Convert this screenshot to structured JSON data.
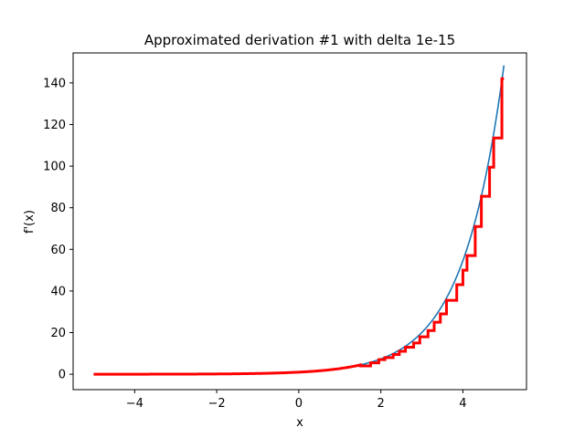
{
  "chart_data": {
    "type": "line",
    "title": "Approximated derivation #1 with delta 1e-15",
    "xlabel": "x",
    "ylabel": "f'(x)",
    "xlim": [
      -5.5,
      5.55
    ],
    "ylim": [
      -7.4,
      154.4
    ],
    "xticks": [
      -4,
      -2,
      0,
      2,
      4
    ],
    "xtick_labels": [
      "−4",
      "−2",
      "0",
      "2",
      "4"
    ],
    "yticks": [
      0,
      20,
      40,
      60,
      80,
      100,
      120,
      140
    ],
    "ytick_labels": [
      "0",
      "20",
      "40",
      "60",
      "80",
      "100",
      "120",
      "140"
    ],
    "grid": false,
    "series": [
      {
        "color": "#1f77b4",
        "function": "exp",
        "x_range": [
          -5,
          5
        ]
      },
      {
        "color": "#ff0000",
        "style": "step",
        "x_range": [
          -5,
          5
        ],
        "steps": [
          {
            "x": 1.5,
            "y": 4.0
          },
          {
            "x": 1.75,
            "y": 5.5
          },
          {
            "x": 1.95,
            "y": 7.0
          },
          {
            "x": 2.1,
            "y": 8.0
          },
          {
            "x": 2.3,
            "y": 9.5
          },
          {
            "x": 2.45,
            "y": 11.0
          },
          {
            "x": 2.6,
            "y": 13.0
          },
          {
            "x": 2.8,
            "y": 15.0
          },
          {
            "x": 2.95,
            "y": 18.0
          },
          {
            "x": 3.15,
            "y": 21.0
          },
          {
            "x": 3.3,
            "y": 25.0
          },
          {
            "x": 3.45,
            "y": 29.0
          },
          {
            "x": 3.6,
            "y": 35.5
          },
          {
            "x": 3.85,
            "y": 43.0
          },
          {
            "x": 4.0,
            "y": 50.0
          },
          {
            "x": 4.1,
            "y": 57.0
          },
          {
            "x": 4.3,
            "y": 71.0
          },
          {
            "x": 4.45,
            "y": 85.5
          },
          {
            "x": 4.65,
            "y": 99.5
          },
          {
            "x": 4.75,
            "y": 113.5
          },
          {
            "x": 4.95,
            "y": 142.0
          }
        ]
      }
    ]
  }
}
